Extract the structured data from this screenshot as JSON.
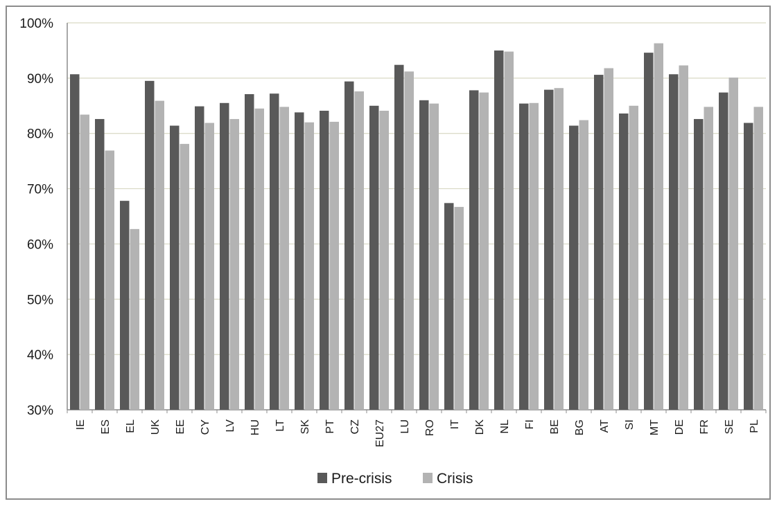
{
  "chart_data": {
    "type": "bar",
    "categories": [
      "IE",
      "ES",
      "EL",
      "UK",
      "EE",
      "CY",
      "LV",
      "HU",
      "LT",
      "SK",
      "PT",
      "CZ",
      "EU27",
      "LU",
      "RO",
      "IT",
      "DK",
      "NL",
      "FI",
      "BE",
      "BG",
      "AT",
      "SI",
      "MT",
      "DE",
      "FR",
      "SE",
      "PL"
    ],
    "series": [
      {
        "name": "Pre-crisis",
        "color": "#595959",
        "values": [
          90.7,
          82.6,
          67.8,
          89.5,
          81.4,
          84.9,
          85.5,
          87.1,
          87.2,
          83.8,
          84.1,
          89.4,
          85.0,
          92.4,
          86.0,
          67.4,
          87.8,
          95.0,
          85.4,
          87.9,
          81.4,
          90.6,
          83.6,
          94.6,
          90.7,
          82.6,
          87.4,
          81.9
        ]
      },
      {
        "name": "Crisis",
        "color": "#b3b3b3",
        "values": [
          83.4,
          76.9,
          62.7,
          85.9,
          78.1,
          81.9,
          82.6,
          84.5,
          84.8,
          82.0,
          82.1,
          87.6,
          84.1,
          91.2,
          85.4,
          66.7,
          87.4,
          94.8,
          85.5,
          88.2,
          82.4,
          91.8,
          85.0,
          96.3,
          92.3,
          84.8,
          90.1,
          84.8
        ]
      }
    ],
    "ylim": [
      30,
      100
    ],
    "yticks": [
      30,
      40,
      50,
      60,
      70,
      80,
      90,
      100
    ],
    "ytick_labels": [
      "30%",
      "40%",
      "50%",
      "60%",
      "70%",
      "80%",
      "90%",
      "100%"
    ],
    "grid": true,
    "legend_position": "bottom",
    "title": "",
    "xlabel": "",
    "ylabel": ""
  }
}
